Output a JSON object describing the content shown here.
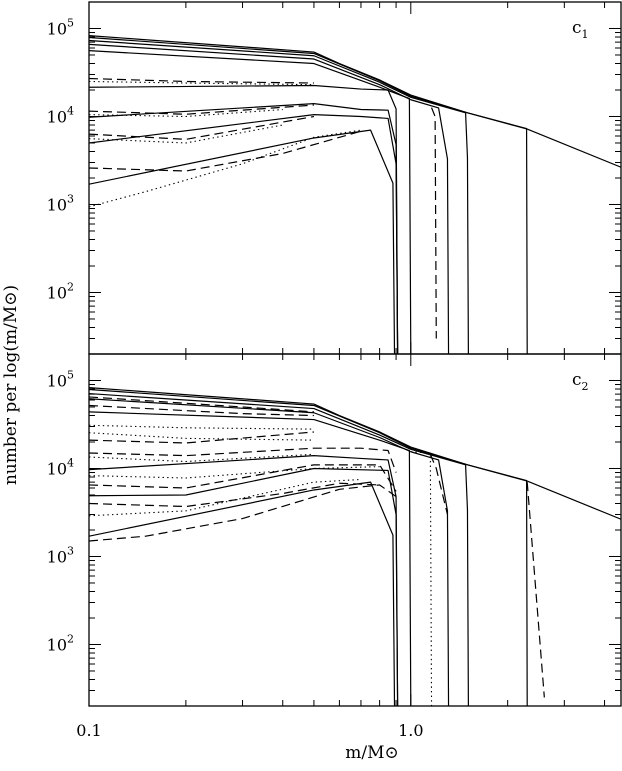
{
  "figure": {
    "ylabel": "number per log(m/M⊙)",
    "xlabel": "m/M⊙"
  },
  "chart_data": [
    {
      "type": "line",
      "panel_label": "c1",
      "xscale": "log",
      "yscale": "log",
      "xlim": [
        0.1,
        4.5
      ],
      "ylim": [
        20,
        200000
      ],
      "x_ticks": [
        {
          "v": 0.1,
          "label": "0.1"
        },
        {
          "v": 1.0,
          "label": "1.0"
        }
      ],
      "y_ticks": [
        {
          "v": 100,
          "base": "10",
          "exp": "2"
        },
        {
          "v": 1000,
          "base": "10",
          "exp": "3"
        },
        {
          "v": 10000,
          "base": "10",
          "exp": "4"
        },
        {
          "v": 100000,
          "base": "10",
          "exp": "5"
        }
      ],
      "series": [
        {
          "style": "solid",
          "points": [
            [
              0.1,
              83000
            ],
            [
              0.5,
              54000
            ],
            [
              0.6,
              40000
            ],
            [
              0.8,
              26000
            ],
            [
              1.0,
              17500
            ],
            [
              1.5,
              11000
            ],
            [
              2.3,
              7200
            ],
            [
              4.5,
              2650
            ]
          ]
        },
        {
          "style": "solid",
          "points": [
            [
              0.1,
              79000
            ],
            [
              0.5,
              52000
            ],
            [
              0.8,
              25500
            ],
            [
              1.0,
              17000
            ],
            [
              1.5,
              11000
            ],
            [
              2.29,
              7300
            ],
            [
              2.3,
              20
            ]
          ]
        },
        {
          "style": "solid",
          "points": [
            [
              0.1,
              73000
            ],
            [
              0.5,
              49000
            ],
            [
              0.8,
              24500
            ],
            [
              1.0,
              16500
            ],
            [
              1.48,
              11000
            ],
            [
              1.5,
              3400
            ],
            [
              1.51,
              20
            ]
          ]
        },
        {
          "style": "solid",
          "points": [
            [
              0.1,
              66000
            ],
            [
              0.5,
              45000
            ],
            [
              0.8,
              23000
            ],
            [
              1.0,
              15500
            ],
            [
              1.22,
              12500
            ],
            [
              1.3,
              3300
            ],
            [
              1.31,
              20
            ]
          ]
        },
        {
          "style": "solid",
          "points": [
            [
              0.1,
              56000
            ],
            [
              0.5,
              40000
            ],
            [
              0.8,
              21500
            ],
            [
              0.99,
              16000
            ],
            [
              1.0,
              20
            ]
          ]
        },
        {
          "style": "solid",
          "points": [
            [
              0.1,
              21500
            ],
            [
              0.5,
              22500
            ],
            [
              0.7,
              20500
            ],
            [
              0.85,
              20000
            ],
            [
              0.9,
              12200
            ],
            [
              0.91,
              20
            ]
          ]
        },
        {
          "style": "solid",
          "points": [
            [
              0.1,
              9800
            ],
            [
              0.5,
              14000
            ],
            [
              0.7,
              12000
            ],
            [
              0.85,
              11800
            ],
            [
              0.9,
              4800
            ],
            [
              0.91,
              20
            ]
          ]
        },
        {
          "style": "solid",
          "points": [
            [
              0.1,
              5000
            ],
            [
              0.5,
              10500
            ],
            [
              0.7,
              10000
            ],
            [
              0.85,
              9500
            ],
            [
              0.9,
              2900
            ],
            [
              0.91,
              20
            ]
          ]
        },
        {
          "style": "solid",
          "points": [
            [
              0.1,
              1700
            ],
            [
              0.5,
              5700
            ],
            [
              0.75,
              7000
            ],
            [
              0.88,
              1750
            ],
            [
              0.89,
              20
            ]
          ]
        },
        {
          "style": "dashed",
          "points": [
            [
              0.1,
              27000
            ],
            [
              0.2,
              25000
            ],
            [
              0.5,
              24000
            ]
          ]
        },
        {
          "style": "dashed",
          "points": [
            [
              0.1,
              11500
            ],
            [
              0.2,
              10600
            ],
            [
              0.5,
              13500
            ]
          ]
        },
        {
          "style": "dashed",
          "points": [
            [
              0.1,
              6300
            ],
            [
              0.2,
              5500
            ],
            [
              0.5,
              10000
            ]
          ]
        },
        {
          "style": "dashed",
          "points": [
            [
              0.1,
              2600
            ],
            [
              0.2,
              2400
            ],
            [
              0.4,
              3800
            ],
            [
              0.7,
              6800
            ]
          ]
        },
        {
          "style": "dashed",
          "points": [
            [
              1.16,
              12600
            ],
            [
              1.19,
              10000
            ],
            [
              1.2,
              30
            ]
          ]
        },
        {
          "style": "dotted",
          "points": [
            [
              0.1,
              25000
            ],
            [
              0.2,
              24000
            ],
            [
              0.5,
              23000
            ]
          ]
        },
        {
          "style": "dotted",
          "points": [
            [
              0.1,
              10500
            ],
            [
              0.2,
              10000
            ],
            [
              0.4,
              12000
            ]
          ]
        },
        {
          "style": "dotted",
          "points": [
            [
              0.1,
              5600
            ],
            [
              0.2,
              5000
            ],
            [
              0.4,
              8000
            ]
          ]
        },
        {
          "style": "dotted",
          "points": [
            [
              0.1,
              940
            ],
            [
              0.15,
              1400
            ],
            [
              0.3,
              2900
            ],
            [
              0.5,
              5800
            ],
            [
              0.7,
              7000
            ]
          ]
        }
      ]
    },
    {
      "type": "line",
      "panel_label": "c2",
      "xscale": "log",
      "yscale": "log",
      "xlim": [
        0.1,
        4.5
      ],
      "ylim": [
        20,
        200000
      ],
      "x_ticks": [
        {
          "v": 0.1,
          "label": "0.1"
        },
        {
          "v": 1.0,
          "label": "1.0"
        }
      ],
      "y_ticks": [
        {
          "v": 100,
          "base": "10",
          "exp": "2"
        },
        {
          "v": 1000,
          "base": "10",
          "exp": "3"
        },
        {
          "v": 10000,
          "base": "10",
          "exp": "4"
        },
        {
          "v": 100000,
          "base": "10",
          "exp": "5"
        }
      ],
      "series": [
        {
          "style": "solid",
          "points": [
            [
              0.1,
              83000
            ],
            [
              0.5,
              54000
            ],
            [
              0.6,
              40000
            ],
            [
              0.8,
              26000
            ],
            [
              1.0,
              17500
            ],
            [
              1.5,
              11000
            ],
            [
              2.3,
              7200
            ],
            [
              4.5,
              2650
            ]
          ]
        },
        {
          "style": "solid",
          "points": [
            [
              0.1,
              79000
            ],
            [
              0.5,
              52000
            ],
            [
              0.8,
              25500
            ],
            [
              1.0,
              17000
            ],
            [
              1.5,
              11000
            ],
            [
              2.29,
              7300
            ],
            [
              2.3,
              20
            ]
          ]
        },
        {
          "style": "solid",
          "points": [
            [
              0.1,
              71000
            ],
            [
              0.5,
              48000
            ],
            [
              0.8,
              24000
            ],
            [
              1.0,
              16500
            ],
            [
              1.48,
              11000
            ],
            [
              1.5,
              3400
            ],
            [
              1.51,
              20
            ]
          ]
        },
        {
          "style": "solid",
          "points": [
            [
              0.1,
              62000
            ],
            [
              0.5,
              43000
            ],
            [
              0.8,
              22500
            ],
            [
              1.0,
              15500
            ],
            [
              1.22,
              12500
            ],
            [
              1.3,
              3300
            ],
            [
              1.31,
              20
            ]
          ]
        },
        {
          "style": "solid",
          "points": [
            [
              0.1,
              44000
            ],
            [
              0.5,
              36000
            ],
            [
              0.8,
              21000
            ],
            [
              0.99,
              16000
            ],
            [
              1.0,
              20
            ]
          ]
        },
        {
          "style": "solid",
          "points": [
            [
              0.1,
              9700
            ],
            [
              0.5,
              14000
            ],
            [
              0.7,
              13000
            ],
            [
              0.85,
              12500
            ],
            [
              0.9,
              4800
            ],
            [
              0.91,
              20
            ]
          ]
        },
        {
          "style": "solid",
          "points": [
            [
              0.1,
              4900
            ],
            [
              0.2,
              5000
            ],
            [
              0.5,
              10000
            ],
            [
              0.85,
              9500
            ],
            [
              0.9,
              3000
            ],
            [
              0.91,
              20
            ]
          ]
        },
        {
          "style": "solid",
          "points": [
            [
              0.1,
              1700
            ],
            [
              0.5,
              5700
            ],
            [
              0.75,
              7000
            ],
            [
              0.88,
              1750
            ],
            [
              0.89,
              20
            ]
          ]
        },
        {
          "style": "dashed",
          "points": [
            [
              0.1,
              65000
            ],
            [
              0.3,
              50000
            ],
            [
              0.5,
              44000
            ]
          ]
        },
        {
          "style": "dashed",
          "points": [
            [
              0.1,
              52000
            ],
            [
              0.3,
              42000
            ],
            [
              0.5,
              40000
            ]
          ]
        },
        {
          "style": "dashed",
          "points": [
            [
              0.1,
              21000
            ],
            [
              0.2,
              19500
            ],
            [
              0.5,
              26000
            ]
          ]
        },
        {
          "style": "dashed",
          "points": [
            [
              0.1,
              15000
            ],
            [
              0.2,
              14000
            ],
            [
              0.5,
              17000
            ],
            [
              0.7,
              17000
            ],
            [
              0.85,
              16000
            ],
            [
              0.9,
              9000
            ]
          ]
        },
        {
          "style": "dashed",
          "points": [
            [
              0.1,
              6500
            ],
            [
              0.2,
              6000
            ],
            [
              0.5,
              11000
            ],
            [
              0.8,
              11000
            ],
            [
              0.9,
              5500
            ]
          ]
        },
        {
          "style": "dashed",
          "points": [
            [
              0.1,
              4000
            ],
            [
              0.2,
              3700
            ],
            [
              0.4,
              5200
            ],
            [
              0.6,
              6800
            ],
            [
              0.8,
              6500
            ]
          ]
        },
        {
          "style": "dashed",
          "points": [
            [
              0.1,
              1500
            ],
            [
              0.15,
              1700
            ],
            [
              0.3,
              2700
            ],
            [
              0.6,
              5800
            ],
            [
              0.8,
              6500
            ],
            [
              0.9,
              4800
            ]
          ]
        },
        {
          "style": "dashed",
          "points": [
            [
              1.15,
              14500
            ],
            [
              1.2,
              10000
            ],
            [
              1.3,
              3000
            ]
          ]
        },
        {
          "style": "dashed",
          "points": [
            [
              2.3,
              7000
            ],
            [
              2.6,
              25
            ]
          ]
        },
        {
          "style": "dotted",
          "points": [
            [
              0.1,
              31000
            ],
            [
              0.2,
              29000
            ],
            [
              0.5,
              28000
            ]
          ]
        },
        {
          "style": "dotted",
          "points": [
            [
              0.1,
              25500
            ],
            [
              0.2,
              22000
            ],
            [
              0.5,
              21000
            ]
          ]
        },
        {
          "style": "dotted",
          "points": [
            [
              0.1,
              13500
            ],
            [
              0.2,
              12000
            ],
            [
              0.5,
              14500
            ]
          ]
        },
        {
          "style": "dotted",
          "points": [
            [
              0.1,
              8300
            ],
            [
              0.2,
              7800
            ],
            [
              0.5,
              10000
            ],
            [
              0.8,
              10500
            ]
          ]
        },
        {
          "style": "dotted",
          "points": [
            [
              0.1,
              2900
            ],
            [
              0.2,
              3300
            ],
            [
              0.5,
              7000
            ],
            [
              0.7,
              7500
            ]
          ]
        },
        {
          "style": "dotted",
          "points": [
            [
              1.0,
              15500
            ],
            [
              1.15,
              15000
            ],
            [
              1.16,
              20
            ]
          ]
        }
      ]
    }
  ]
}
